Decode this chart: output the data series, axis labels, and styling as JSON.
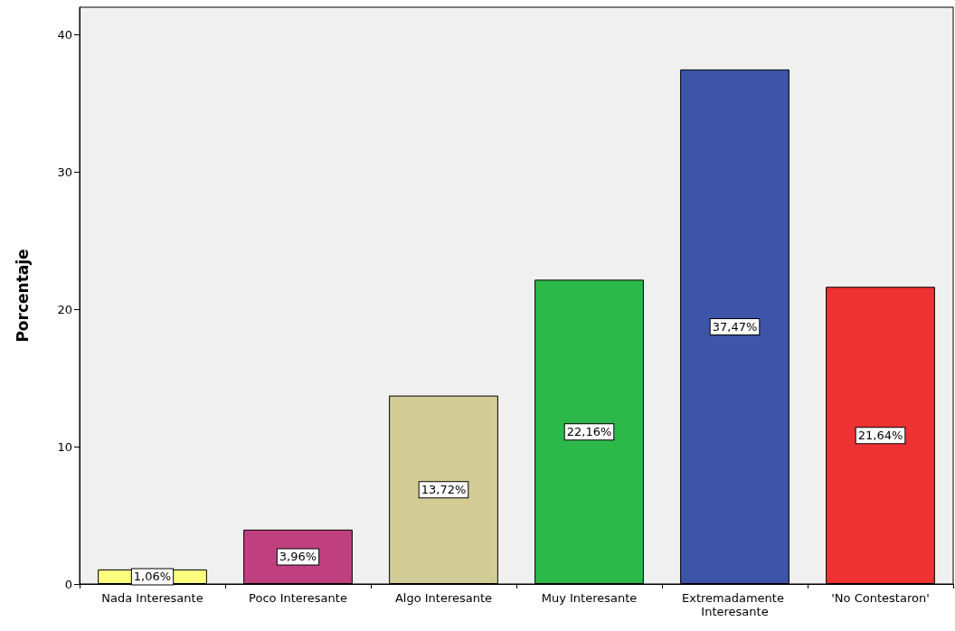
{
  "chart_data": {
    "type": "bar",
    "ylabel": "Porcentaje",
    "categories": [
      "Nada Interesante",
      "Poco Interesante",
      "Algo Interesante",
      "Muy Interesante",
      "Extremadamente Interesante",
      "'No Contestaron'"
    ],
    "values": [
      1.06,
      3.96,
      13.72,
      22.16,
      37.47,
      21.64
    ],
    "colors": [
      "#ffff80",
      "#c0407f",
      "#d4cc96",
      "#2db84a",
      "#3d54a8",
      "#ee3234"
    ],
    "value_labels": [
      "1,06%",
      "3,96%",
      "13,72%",
      "22,16%",
      "37,47%",
      "21,64%"
    ],
    "ylim": [
      0,
      42
    ],
    "yticks": [
      0,
      10,
      20,
      30,
      40
    ],
    "grid": false
  }
}
